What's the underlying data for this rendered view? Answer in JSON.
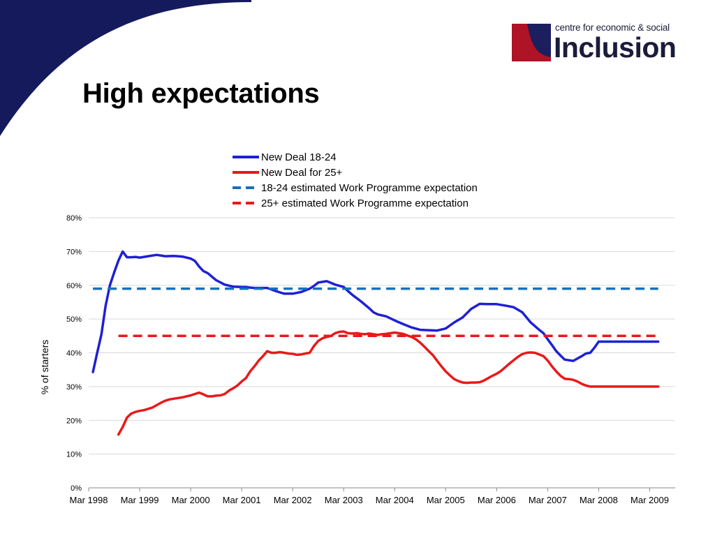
{
  "slide": {
    "title": "High expectations"
  },
  "logo": {
    "tagline": "centre for economic & social",
    "name": "Inclusion",
    "colors": {
      "navy": "#1b1f5e",
      "red": "#b01226"
    }
  },
  "theme": {
    "corner_color": "#141a5c"
  },
  "chart_data": {
    "type": "line",
    "title": "",
    "xlabel": "",
    "ylabel": "% of starters",
    "x_unit": "months since Mar 1998",
    "ylim": [
      0,
      0.8
    ],
    "y_ticks": [
      0,
      0.1,
      0.2,
      0.3,
      0.4,
      0.5,
      0.6,
      0.7,
      0.8
    ],
    "y_tick_labels": [
      "0%",
      "10%",
      "20%",
      "30%",
      "40%",
      "50%",
      "60%",
      "70%",
      "80%"
    ],
    "x_ticks": [
      0,
      12,
      24,
      36,
      48,
      60,
      72,
      84,
      96,
      108,
      120,
      132
    ],
    "x_tick_labels": [
      "Mar 1998",
      "Mar 1999",
      "Mar 2000",
      "Mar 2001",
      "Mar 2002",
      "Mar 2003",
      "Mar 2004",
      "Mar 2005",
      "Mar 2006",
      "Mar 2007",
      "Mar 2008",
      "Mar 2009"
    ],
    "grid": true,
    "legend_position": "top",
    "series": [
      {
        "name": "New Deal 18-24",
        "color": "#1f1fd6",
        "style": "solid",
        "x": [
          1,
          2,
          3,
          4,
          5,
          6,
          7,
          8,
          9,
          10,
          11,
          12,
          14,
          16,
          18,
          20,
          22,
          24,
          25,
          26,
          27,
          28,
          30,
          32,
          34,
          36,
          37,
          38,
          39,
          40,
          42,
          44,
          46,
          48,
          50,
          52,
          53,
          54,
          55,
          56,
          58,
          60,
          61,
          62,
          64,
          66,
          67,
          68,
          70,
          72,
          74,
          76,
          78,
          80,
          82,
          84,
          86,
          88,
          90,
          92,
          94,
          96,
          98,
          100,
          102,
          104,
          106,
          107,
          108,
          109,
          110,
          111,
          112,
          114,
          116,
          117,
          118,
          119,
          120,
          121,
          122,
          123,
          124,
          125,
          126,
          127,
          128,
          129,
          130,
          131,
          132,
          133,
          134
        ],
        "y": [
          0.343,
          0.4,
          0.455,
          0.54,
          0.6,
          0.638,
          0.673,
          0.7,
          0.683,
          0.683,
          0.684,
          0.682,
          0.686,
          0.69,
          0.686,
          0.687,
          0.685,
          0.679,
          0.672,
          0.655,
          0.642,
          0.636,
          0.615,
          0.602,
          0.596,
          0.595,
          0.595,
          0.593,
          0.592,
          0.592,
          0.592,
          0.583,
          0.575,
          0.575,
          0.58,
          0.59,
          0.598,
          0.608,
          0.61,
          0.612,
          0.602,
          0.595,
          0.583,
          0.572,
          0.553,
          0.532,
          0.52,
          0.514,
          0.508,
          0.496,
          0.485,
          0.475,
          0.468,
          0.467,
          0.466,
          0.472,
          0.49,
          0.505,
          0.53,
          0.545,
          0.544,
          0.544,
          0.54,
          0.535,
          0.52,
          0.49,
          0.468,
          0.458,
          0.44,
          0.423,
          0.405,
          0.392,
          0.38,
          0.376,
          0.39,
          0.398,
          0.4,
          0.415,
          0.433,
          0.433,
          0.433,
          0.433,
          0.433,
          0.433,
          0.433,
          0.433,
          0.433,
          0.433,
          0.433,
          0.433,
          0.433,
          0.433,
          0.433
        ]
      },
      {
        "name": "New Deal for 25+",
        "color": "#e8191a",
        "style": "solid",
        "x": [
          7,
          8,
          9,
          10,
          11,
          12,
          13,
          14,
          15,
          16,
          17,
          18,
          19,
          20,
          21,
          22,
          23,
          24,
          25,
          26,
          27,
          28,
          29,
          30,
          31,
          32,
          33,
          34,
          35,
          36,
          37,
          38,
          39,
          40,
          41,
          42,
          43,
          44,
          45,
          46,
          47,
          48,
          49,
          50,
          51,
          52,
          53,
          54,
          55,
          56,
          57,
          58,
          59,
          60,
          61,
          62,
          63,
          64,
          65,
          66,
          67,
          68,
          69,
          70,
          71,
          72,
          73,
          74,
          75,
          76,
          77,
          78,
          79,
          80,
          81,
          82,
          83,
          84,
          85,
          86,
          87,
          88,
          89,
          90,
          91,
          92,
          93,
          94,
          95,
          96,
          97,
          98,
          99,
          100,
          101,
          102,
          103,
          104,
          105,
          106,
          107,
          108,
          109,
          110,
          111,
          112,
          113,
          114,
          115,
          116,
          117,
          118,
          119,
          120,
          121,
          122,
          123,
          124,
          125,
          126,
          127,
          128,
          129,
          130,
          131,
          132,
          133,
          134
        ],
        "y": [
          0.158,
          0.18,
          0.208,
          0.22,
          0.225,
          0.228,
          0.23,
          0.234,
          0.238,
          0.245,
          0.252,
          0.258,
          0.262,
          0.264,
          0.266,
          0.268,
          0.271,
          0.274,
          0.278,
          0.282,
          0.277,
          0.271,
          0.271,
          0.273,
          0.274,
          0.278,
          0.288,
          0.295,
          0.303,
          0.315,
          0.325,
          0.345,
          0.36,
          0.377,
          0.39,
          0.405,
          0.4,
          0.4,
          0.402,
          0.4,
          0.398,
          0.397,
          0.394,
          0.395,
          0.398,
          0.4,
          0.42,
          0.435,
          0.443,
          0.447,
          0.45,
          0.458,
          0.462,
          0.463,
          0.458,
          0.457,
          0.458,
          0.456,
          0.455,
          0.457,
          0.455,
          0.453,
          0.455,
          0.456,
          0.458,
          0.46,
          0.458,
          0.456,
          0.451,
          0.447,
          0.44,
          0.43,
          0.418,
          0.405,
          0.393,
          0.376,
          0.36,
          0.345,
          0.333,
          0.322,
          0.316,
          0.312,
          0.311,
          0.312,
          0.312,
          0.313,
          0.318,
          0.325,
          0.332,
          0.338,
          0.346,
          0.357,
          0.368,
          0.378,
          0.388,
          0.396,
          0.4,
          0.401,
          0.4,
          0.395,
          0.39,
          0.377,
          0.36,
          0.345,
          0.332,
          0.323,
          0.322,
          0.32,
          0.315,
          0.308,
          0.303,
          0.3,
          0.3,
          0.3,
          0.3,
          0.3,
          0.3,
          0.3,
          0.3,
          0.3,
          0.3,
          0.3,
          0.3,
          0.3,
          0.3,
          0.3,
          0.3,
          0.3
        ]
      },
      {
        "name": "18-24 estimated Work Programme expectation",
        "color": "#1670bf",
        "style": "dashed",
        "x": [
          1,
          134
        ],
        "y": [
          0.59,
          0.59
        ]
      },
      {
        "name": "25+ estimated Work Programme expectation",
        "color": "#e8191a",
        "style": "dashed",
        "x": [
          7,
          134
        ],
        "y": [
          0.45,
          0.45
        ]
      }
    ]
  }
}
